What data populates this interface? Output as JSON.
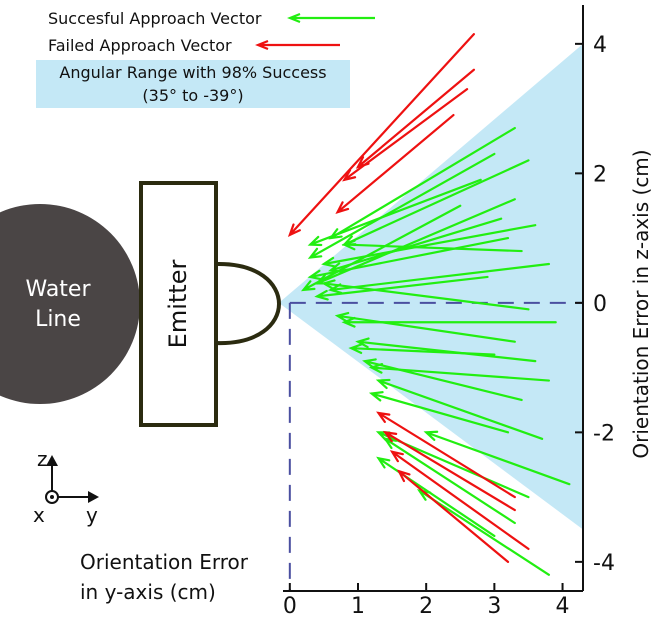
{
  "chart_data": {
    "type": "quiver",
    "xlim": [
      -0.1,
      4.3
    ],
    "ylim": [
      -4.45,
      4.6
    ],
    "xticks": [
      0,
      1,
      2,
      3,
      4
    ],
    "yticks": [
      -4,
      -2,
      0,
      2,
      4
    ],
    "x_label_lines": [
      "Orientation Error",
      "in y-axis (cm)"
    ],
    "y_label": "Orientation Error in z-axis (cm)",
    "cone": {
      "label_lines": [
        "Angular Range with 98% Success",
        "(35° to -39°)"
      ],
      "color": "#c4e8f6",
      "points": [
        [
          -0.16,
          0
        ],
        [
          4.3,
          4.0
        ],
        [
          4.3,
          -3.5
        ]
      ]
    },
    "annotations": {
      "water_line": [
        "Water",
        "Line"
      ],
      "emitter": "Emitter",
      "axis_z": "z",
      "axis_x": "x",
      "axis_y": "y"
    },
    "series": [
      {
        "name": "Succesful Approach Vector",
        "color": "#22ee11",
        "vectors": [
          [
            3.3,
            2.7,
            0.6,
            1.0
          ],
          [
            3.0,
            2.3,
            0.3,
            0.7
          ],
          [
            3.5,
            2.2,
            0.8,
            0.9
          ],
          [
            2.8,
            1.9,
            0.3,
            0.9
          ],
          [
            3.3,
            1.6,
            0.4,
            0.3
          ],
          [
            3.6,
            1.2,
            0.5,
            0.6
          ],
          [
            3.2,
            1.0,
            0.3,
            0.4
          ],
          [
            3.8,
            0.6,
            0.6,
            0.2
          ],
          [
            3.4,
            0.8,
            0.8,
            0.9
          ],
          [
            2.9,
            0.4,
            0.4,
            0.1
          ],
          [
            3.9,
            -0.3,
            0.8,
            -0.3
          ],
          [
            3.5,
            -0.1,
            0.5,
            0.3
          ],
          [
            3.3,
            -0.6,
            0.7,
            -0.2
          ],
          [
            3.6,
            -0.9,
            1.0,
            -0.6
          ],
          [
            3.8,
            -1.2,
            1.2,
            -1.0
          ],
          [
            3.0,
            -0.8,
            0.9,
            -0.7
          ],
          [
            3.4,
            -1.5,
            1.1,
            -0.9
          ],
          [
            3.7,
            -2.1,
            1.3,
            -1.2
          ],
          [
            3.2,
            -2.0,
            1.2,
            -1.4
          ],
          [
            4.1,
            -2.8,
            2.0,
            -2.0
          ],
          [
            3.5,
            -3.0,
            1.3,
            -2.0
          ],
          [
            3.3,
            -3.4,
            1.4,
            -2.1
          ],
          [
            3.8,
            -4.2,
            1.9,
            -2.9
          ],
          [
            3.0,
            -3.6,
            1.3,
            -2.4
          ],
          [
            2.5,
            1.5,
            0.2,
            0.2
          ],
          [
            3.1,
            1.3,
            0.6,
            0.5
          ]
        ]
      },
      {
        "name": "Failed Approach Vector",
        "color": "#ee1111",
        "vectors": [
          [
            2.7,
            4.15,
            0.0,
            1.05
          ],
          [
            2.7,
            3.6,
            1.0,
            2.1
          ],
          [
            2.6,
            3.3,
            0.8,
            1.9
          ],
          [
            2.4,
            2.9,
            0.7,
            1.4
          ],
          [
            3.3,
            -3.0,
            1.3,
            -1.7
          ],
          [
            3.3,
            -3.2,
            1.4,
            -2.0
          ],
          [
            3.5,
            -3.8,
            1.5,
            -2.3
          ],
          [
            3.2,
            -4.0,
            1.6,
            -2.6
          ]
        ]
      }
    ]
  }
}
